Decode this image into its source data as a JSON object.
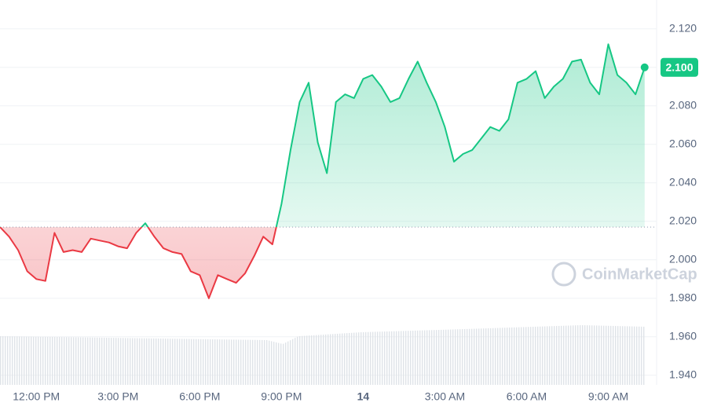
{
  "chart_data": {
    "type": "line",
    "watermark": "CoinMarketCap",
    "categories": [
      null,
      null,
      null,
      null,
      "12:00 PM",
      null,
      null,
      null,
      null,
      null,
      null,
      null,
      null,
      "3:00 PM",
      null,
      null,
      null,
      null,
      null,
      null,
      null,
      null,
      "6:00 PM",
      null,
      null,
      null,
      null,
      null,
      null,
      null,
      null,
      "9:00 PM",
      null,
      null,
      null,
      null,
      null,
      null,
      null,
      null,
      "14",
      null,
      null,
      null,
      null,
      null,
      null,
      null,
      null,
      "3:00 AM",
      null,
      null,
      null,
      null,
      null,
      null,
      null,
      null,
      "6:00 AM",
      null,
      null,
      null,
      null,
      null,
      null,
      null,
      null,
      "9:00 AM",
      null,
      null,
      null,
      null
    ],
    "values": [
      2.017,
      2.012,
      2.005,
      1.994,
      1.99,
      1.989,
      2.014,
      2.004,
      2.005,
      2.004,
      2.011,
      2.01,
      2.009,
      2.007,
      2.006,
      2.014,
      2.019,
      2.012,
      2.006,
      2.004,
      2.003,
      1.994,
      1.992,
      1.98,
      1.992,
      1.99,
      1.988,
      1.993,
      2.002,
      2.012,
      2.008,
      2.029,
      2.057,
      2.082,
      2.092,
      2.061,
      2.045,
      2.082,
      2.086,
      2.084,
      2.094,
      2.096,
      2.09,
      2.082,
      2.084,
      2.094,
      2.103,
      2.092,
      2.082,
      2.069,
      2.051,
      2.055,
      2.057,
      2.063,
      2.069,
      2.067,
      2.073,
      2.092,
      2.094,
      2.098,
      2.084,
      2.09,
      2.094,
      2.103,
      2.104,
      2.092,
      2.086,
      2.112,
      2.096,
      2.092,
      2.086,
      2.1
    ],
    "value_labels": [
      null,
      null,
      null,
      null,
      null,
      null,
      null,
      null,
      null,
      null,
      null,
      null,
      null,
      null,
      null,
      null,
      null,
      null,
      null,
      null,
      null,
      null,
      null,
      null,
      null,
      null,
      null,
      null,
      null,
      null,
      null,
      null,
      null,
      null,
      null,
      null,
      null,
      null,
      null,
      null,
      null,
      null,
      null,
      null,
      null,
      null,
      null,
      null,
      null,
      null,
      null,
      null,
      null,
      null,
      null,
      null,
      null,
      null,
      null,
      null,
      null,
      null,
      null,
      null,
      null,
      null,
      null,
      null,
      null,
      null,
      null,
      "2.100"
    ],
    "up_color": "#16c784",
    "down_color": "#ea3943",
    "ylim": [
      1.935,
      2.135
    ],
    "yticks": [
      {
        "value": 1.94,
        "label": "1.940"
      },
      {
        "value": 1.96,
        "label": "1.960"
      },
      {
        "value": 1.98,
        "label": "1.980"
      },
      {
        "value": 2.0,
        "label": "2.000"
      },
      {
        "value": 2.02,
        "label": "2.020"
      },
      {
        "value": 2.04,
        "label": "2.040"
      },
      {
        "value": 2.06,
        "label": "2.060"
      },
      {
        "value": 2.08,
        "label": "2.080"
      },
      {
        "value": 2.1,
        "label": "2.100"
      },
      {
        "value": 2.12,
        "label": "2.120"
      }
    ],
    "grid": true
  }
}
